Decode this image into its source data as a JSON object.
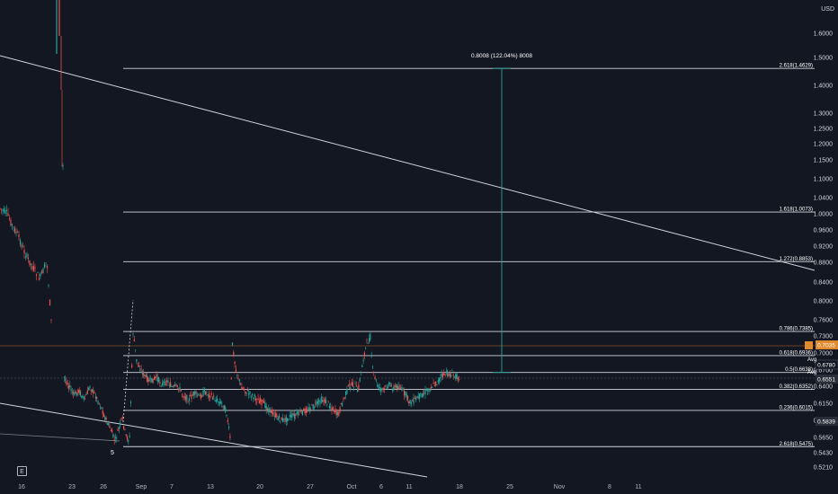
{
  "chart_data": {
    "type": "candlestick",
    "currency_label": "USD",
    "y_tick_labels": [
      "1.6000",
      "1.5000",
      "1.4000",
      "1.3000",
      "1.2500",
      "1.2000",
      "1.1500",
      "1.1000",
      "1.0400",
      "1.0000",
      "0.9600",
      "0.9200",
      "0.8800",
      "0.8400",
      "0.8000",
      "0.7600",
      "0.7300",
      "0.7000",
      "0.6700",
      "0.6400",
      "0.6150",
      "0.5900",
      "0.5650",
      "0.5430",
      "0.5210"
    ],
    "x_tick_labels": [
      "16",
      "23",
      "26",
      "Sep",
      "7",
      "13",
      "20",
      "27",
      "Oct",
      "6",
      "11",
      "18",
      "25",
      "Nov",
      "8",
      "11"
    ],
    "fib_levels": [
      {
        "label": "2.618(1.4629)",
        "value": 1.4629
      },
      {
        "label": "1.618(1.0073)",
        "value": 1.0073
      },
      {
        "label": "1.272(0.8853)",
        "value": 0.8853
      },
      {
        "label": "0.786(0.7385)",
        "value": 0.7385
      },
      {
        "label": "0.618(0.6936)",
        "value": 0.6936
      },
      {
        "label": "0.5(0.6638)",
        "value": 0.6638
      },
      {
        "label": "0.382(0.6352)",
        "value": 0.6352
      },
      {
        "label": "0.236(0.6015)",
        "value": 0.6015
      },
      {
        "label": "2.618(0.5475)",
        "value": 0.5475
      }
    ],
    "measure_label": "0.8008 (122.04%) 8008",
    "wave_label": "5",
    "price_badges": [
      {
        "text": "0.7035",
        "color": "#e08a2e"
      },
      {
        "text": "0.6780",
        "color": "#131722"
      },
      {
        "text": "0.6551",
        "color": "#2a2e39"
      },
      {
        "text": "0.5839",
        "color": "#2a2e39"
      }
    ],
    "secondary_labels": [
      "Avg",
      "Avg"
    ],
    "corner_button": "E"
  }
}
